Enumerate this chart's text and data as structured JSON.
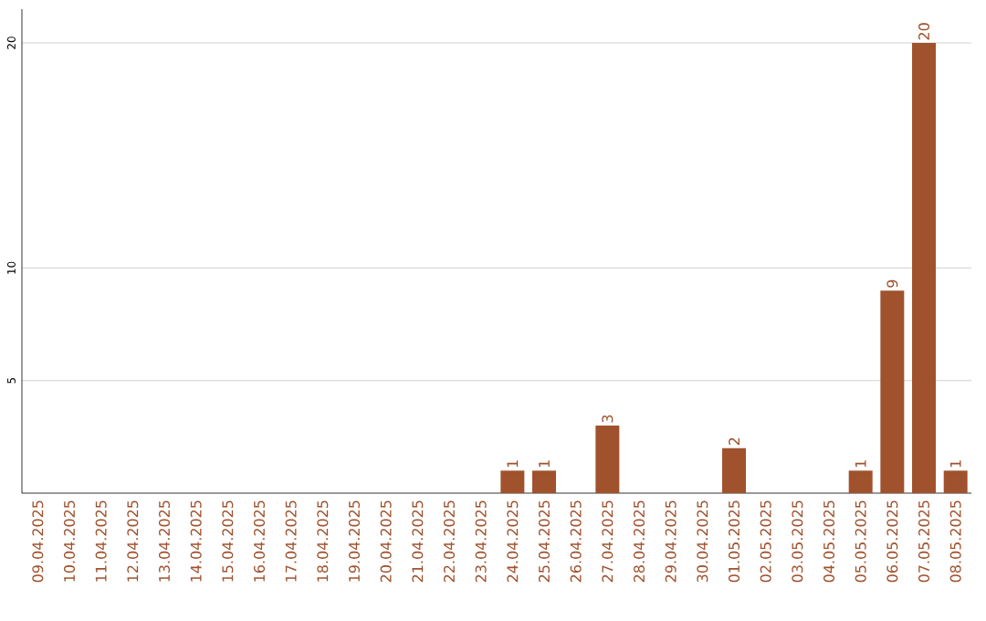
{
  "chart_data": {
    "type": "bar",
    "categories": [
      "09.04.2025",
      "10.04.2025",
      "11.04.2025",
      "12.04.2025",
      "13.04.2025",
      "14.04.2025",
      "15.04.2025",
      "16.04.2025",
      "17.04.2025",
      "18.04.2025",
      "19.04.2025",
      "20.04.2025",
      "21.04.2025",
      "22.04.2025",
      "23.04.2025",
      "24.04.2025",
      "25.04.2025",
      "26.04.2025",
      "27.04.2025",
      "28.04.2025",
      "29.04.2025",
      "30.04.2025",
      "01.05.2025",
      "02.05.2025",
      "03.05.2025",
      "04.05.2025",
      "05.05.2025",
      "06.05.2025",
      "07.05.2025",
      "08.05.2025"
    ],
    "values": [
      0,
      0,
      0,
      0,
      0,
      0,
      0,
      0,
      0,
      0,
      0,
      0,
      0,
      0,
      0,
      1,
      1,
      0,
      3,
      0,
      0,
      0,
      2,
      0,
      0,
      0,
      1,
      9,
      20,
      1
    ],
    "value_labels": [
      null,
      null,
      null,
      null,
      null,
      null,
      null,
      null,
      null,
      null,
      null,
      null,
      null,
      null,
      null,
      "1",
      "1",
      null,
      "3",
      null,
      null,
      null,
      "2",
      null,
      null,
      null,
      "1",
      "9",
      "20",
      "1"
    ],
    "color": "#a0522d",
    "ylim": [
      0,
      21.5
    ],
    "yticks": [
      5,
      10,
      20
    ],
    "grid": "y"
  }
}
